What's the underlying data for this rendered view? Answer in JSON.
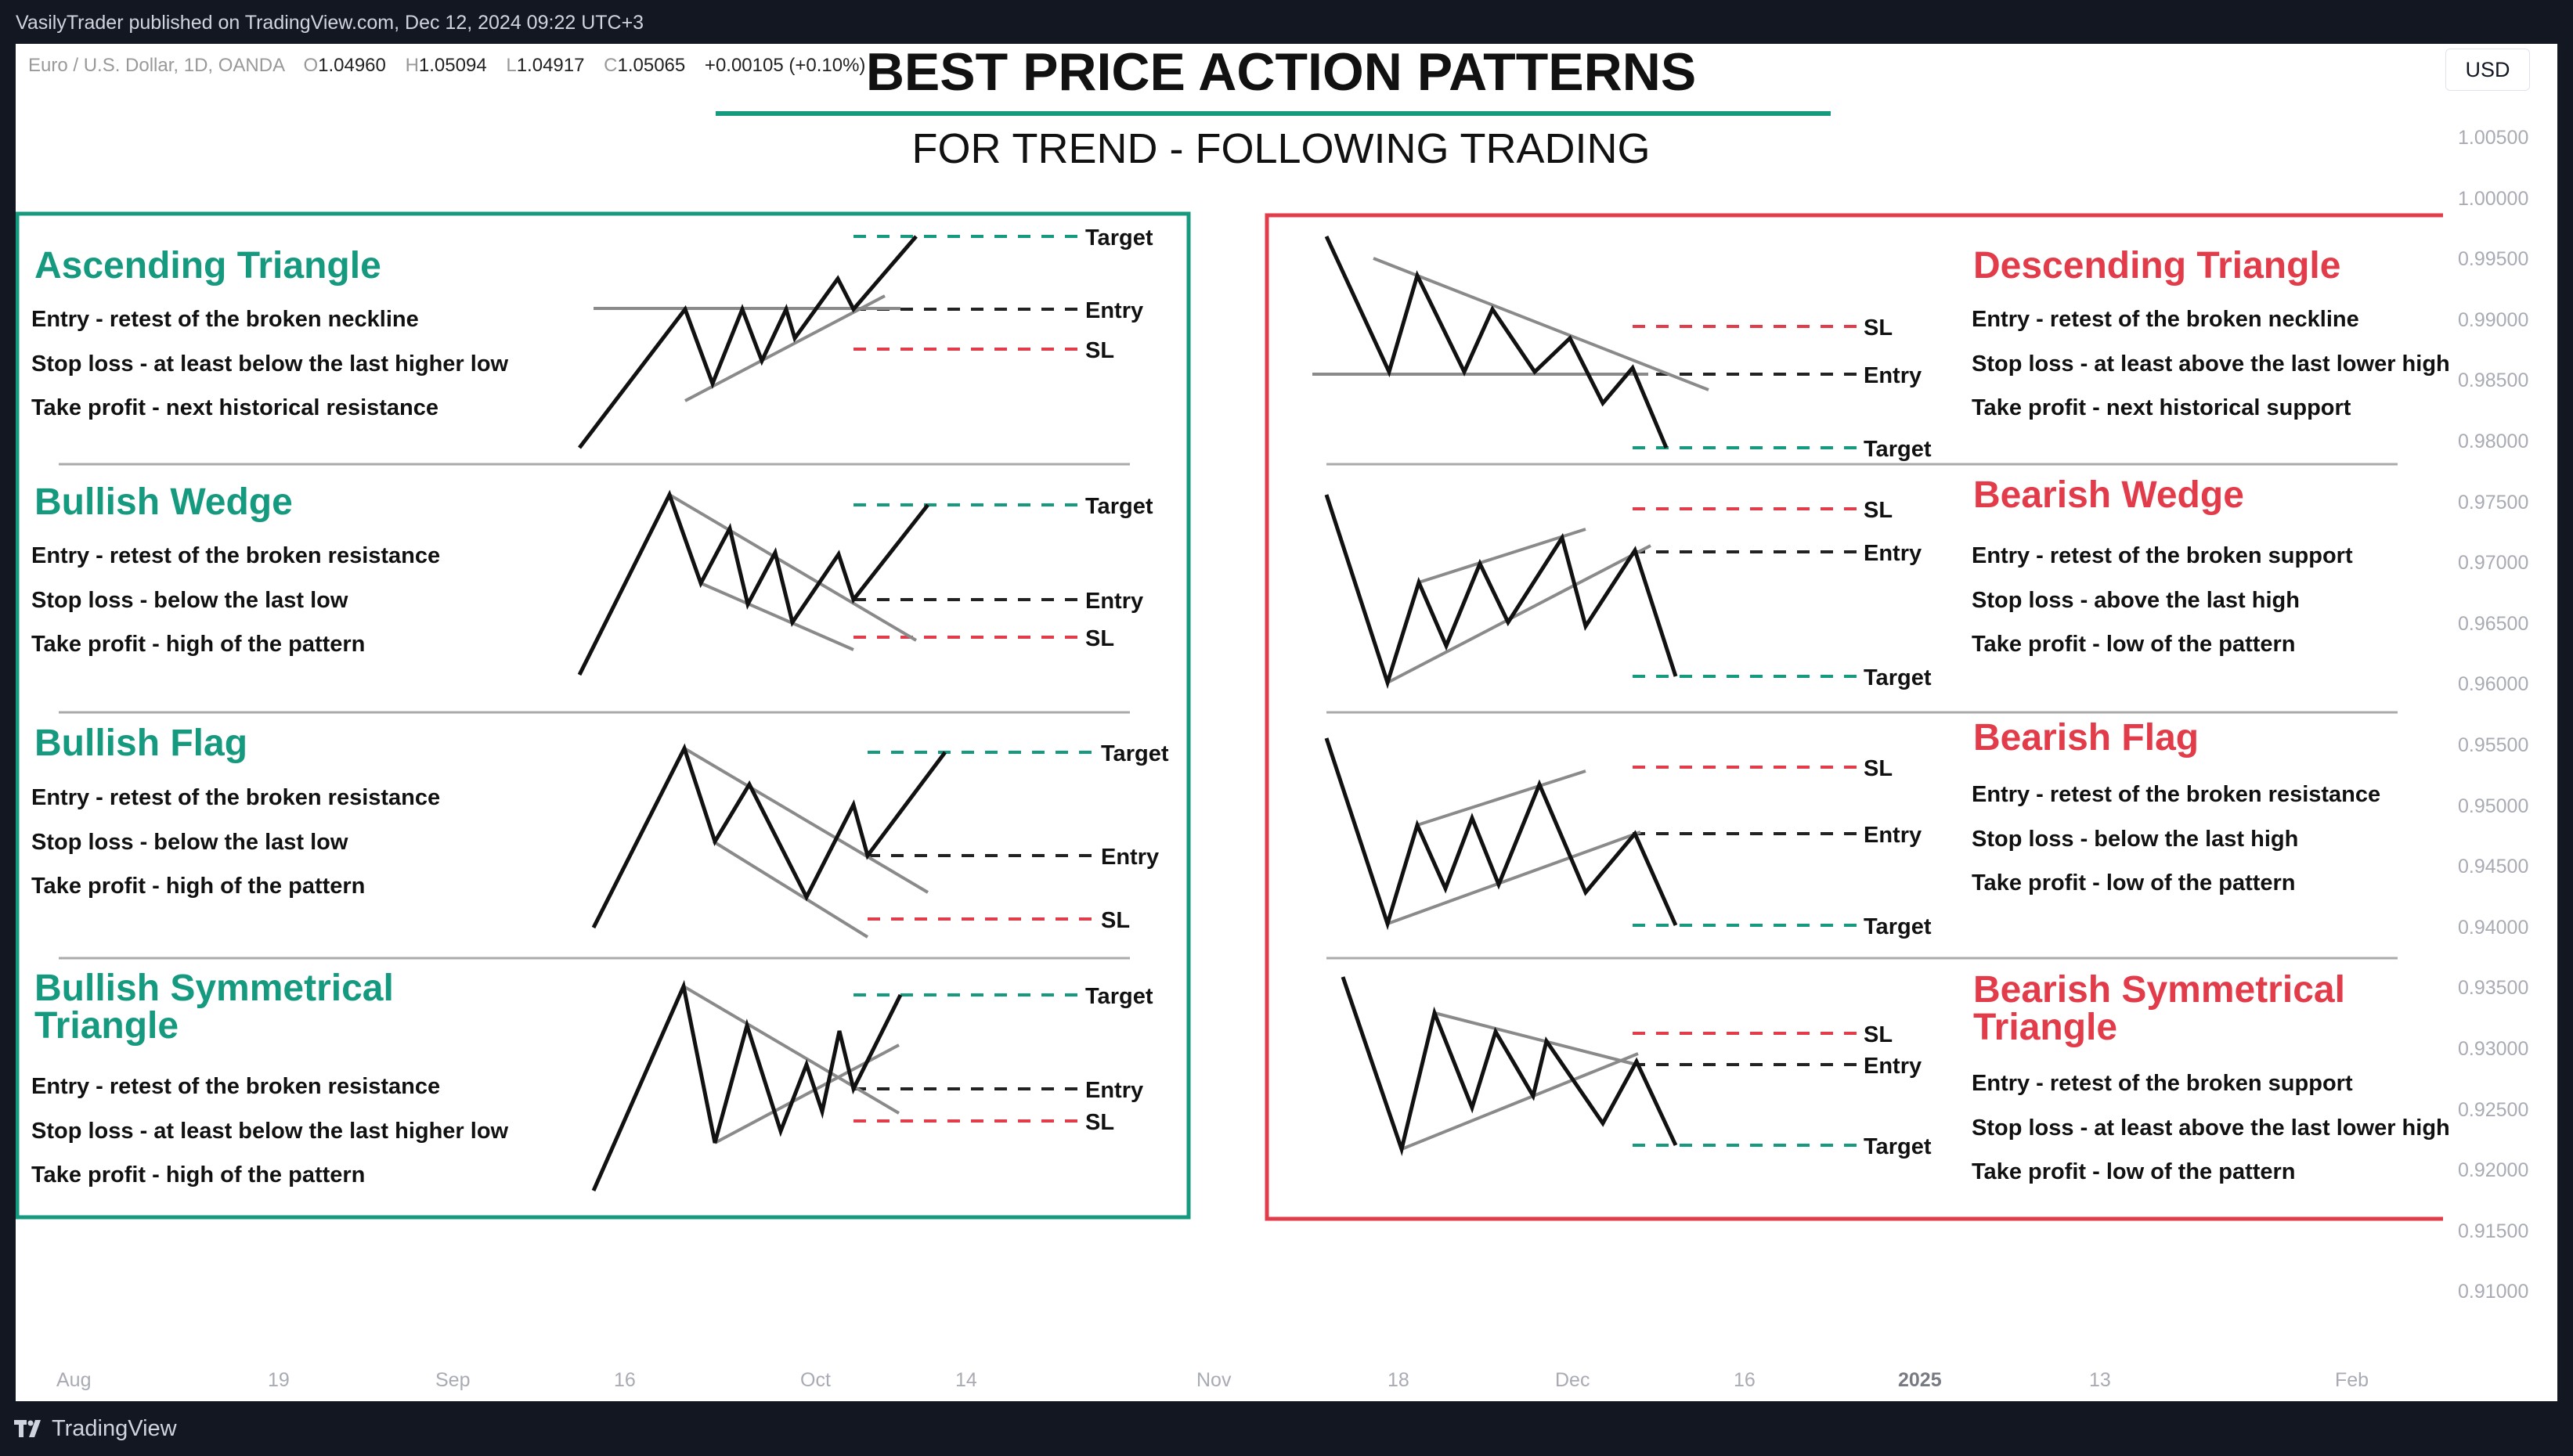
{
  "header": {
    "publisher_line": "VasilyTrader published on TradingView.com, Dec 12, 2024 09:22 UTC+3"
  },
  "legend": {
    "symbol": "Euro / U.S. Dollar, 1D, OANDA",
    "open_label": "O",
    "open": "1.04960",
    "high_label": "H",
    "high": "1.05094",
    "low_label": "L",
    "low": "1.04917",
    "close_label": "C",
    "close": "1.05065",
    "change": "+0.00105 (+0.10%)"
  },
  "currency_button": "USD",
  "price_axis": [
    "1.00500",
    "1.00000",
    "0.99500",
    "0.99000",
    "0.98500",
    "0.98000",
    "0.97500",
    "0.97000",
    "0.96500",
    "0.96000",
    "0.95500",
    "0.95000",
    "0.94500",
    "0.94000",
    "0.93500",
    "0.93000",
    "0.92500",
    "0.92000",
    "0.91500",
    "0.91000"
  ],
  "time_axis": [
    {
      "label": "Aug",
      "bold": false
    },
    {
      "label": "19",
      "bold": false
    },
    {
      "label": "Sep",
      "bold": false
    },
    {
      "label": "16",
      "bold": false
    },
    {
      "label": "Oct",
      "bold": false
    },
    {
      "label": "14",
      "bold": false
    },
    {
      "label": "Nov",
      "bold": false
    },
    {
      "label": "18",
      "bold": false
    },
    {
      "label": "Dec",
      "bold": false
    },
    {
      "label": "16",
      "bold": false
    },
    {
      "label": "2025",
      "bold": true
    },
    {
      "label": "13",
      "bold": false
    },
    {
      "label": "Feb",
      "bold": false
    }
  ],
  "footer": {
    "brand": "TradingView"
  },
  "infographic": {
    "title": "BEST PRICE ACTION PATTERNS",
    "subtitle": "FOR TREND - FOLLOWING TRADING",
    "colors": {
      "bullish": "#169a7f",
      "bearish": "#e23c4a",
      "target_line": "#169a7f",
      "sl_line": "#e23c4a",
      "entry_line": "#222222"
    },
    "bullish": [
      {
        "title": [
          "Ascending Triangle"
        ],
        "entry": "Entry - retest of the broken neckline",
        "stop": "Stop loss - at least below the last higher low",
        "profit": "Take profit - next historical resistance",
        "labels": [
          "Target",
          "Entry",
          "SL"
        ]
      },
      {
        "title": [
          "Bullish Wedge"
        ],
        "entry": "Entry - retest of the broken resistance",
        "stop": "Stop loss - below the last low",
        "profit": "Take profit - high of the pattern",
        "labels": [
          "Target",
          "Entry",
          "SL"
        ]
      },
      {
        "title": [
          "Bullish Flag"
        ],
        "entry": "Entry - retest of the broken resistance",
        "stop": "Stop loss - below the last low",
        "profit": "Take profit - high of the pattern",
        "labels": [
          "Target",
          "Entry",
          "SL"
        ]
      },
      {
        "title": [
          "Bullish Symmetrical",
          "Triangle"
        ],
        "entry": "Entry - retest of the broken resistance",
        "stop": "Stop loss - at least below the last higher low",
        "profit": "Take profit - high of the pattern",
        "labels": [
          "Target",
          "Entry",
          "SL"
        ]
      }
    ],
    "bearish": [
      {
        "title": [
          "Descending Triangle"
        ],
        "entry": "Entry - retest of the broken neckline",
        "stop": "Stop loss - at least above the last lower high",
        "profit": "Take profit - next historical support",
        "labels": [
          "SL",
          "Entry",
          "Target"
        ]
      },
      {
        "title": [
          "Bearish Wedge"
        ],
        "entry": "Entry - retest of the broken support",
        "stop": "Stop loss - above the last high",
        "profit": "Take profit - low of the pattern",
        "labels": [
          "SL",
          "Entry",
          "Target"
        ]
      },
      {
        "title": [
          "Bearish Flag"
        ],
        "entry": "Entry - retest of the broken resistance",
        "stop": "Stop loss - below the last high",
        "profit": "Take profit - low of the pattern",
        "labels": [
          "SL",
          "Entry",
          "Target"
        ]
      },
      {
        "title": [
          "Bearish Symmetrical",
          "Triangle"
        ],
        "entry": "Entry - retest of the broken support",
        "stop": "Stop loss - at least above the last lower high",
        "profit": "Take profit - low of the pattern",
        "labels": [
          "SL",
          "Entry",
          "Target"
        ]
      }
    ]
  }
}
